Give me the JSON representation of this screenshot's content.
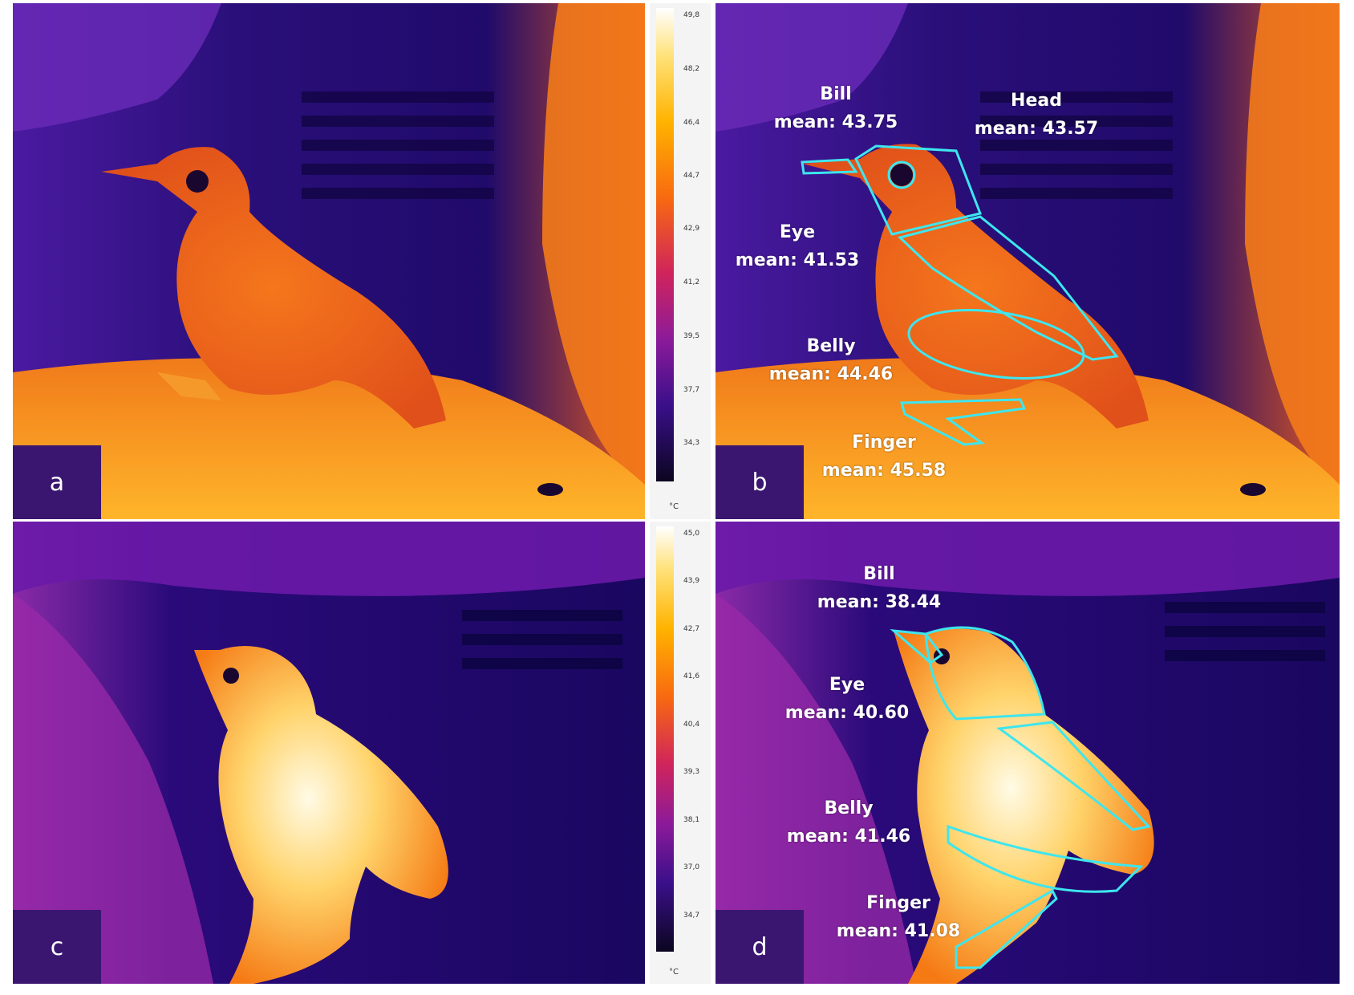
{
  "panels": {
    "a": {
      "letter": "a"
    },
    "b": {
      "letter": "b",
      "labels": {
        "bill": {
          "name": "Bill",
          "mean": "mean: 43.75"
        },
        "head": {
          "name": "Head",
          "mean": "mean: 43.57"
        },
        "eye": {
          "name": "Eye",
          "mean": "mean: 41.53"
        },
        "belly": {
          "name": "Belly",
          "mean": "mean: 44.46"
        },
        "finger": {
          "name": "Finger",
          "mean": "mean: 45.58"
        }
      }
    },
    "c": {
      "letter": "c"
    },
    "d": {
      "letter": "d",
      "labels": {
        "bill": {
          "name": "Bill",
          "mean": "mean: 38.44"
        },
        "eye": {
          "name": "Eye",
          "mean": "mean: 40.60"
        },
        "belly": {
          "name": "Belly",
          "mean": "mean: 41.46"
        },
        "finger": {
          "name": "Finger",
          "mean": "mean: 41.08"
        }
      }
    }
  },
  "colorbars": {
    "top": {
      "unit": "°C",
      "ticks": [
        "49,8",
        "48,2",
        "46,4",
        "44,7",
        "42,9",
        "41,2",
        "39,5",
        "37,7",
        "34,3"
      ]
    },
    "bottom": {
      "unit": "°C",
      "ticks": [
        "45,0",
        "43,9",
        "42,7",
        "41,6",
        "40,4",
        "39,3",
        "38,1",
        "37,0",
        "34,7"
      ]
    }
  },
  "colors": {
    "outline": "#3ee6ee",
    "label_text": "#ffffff",
    "letter_bg": "#3a1670"
  }
}
